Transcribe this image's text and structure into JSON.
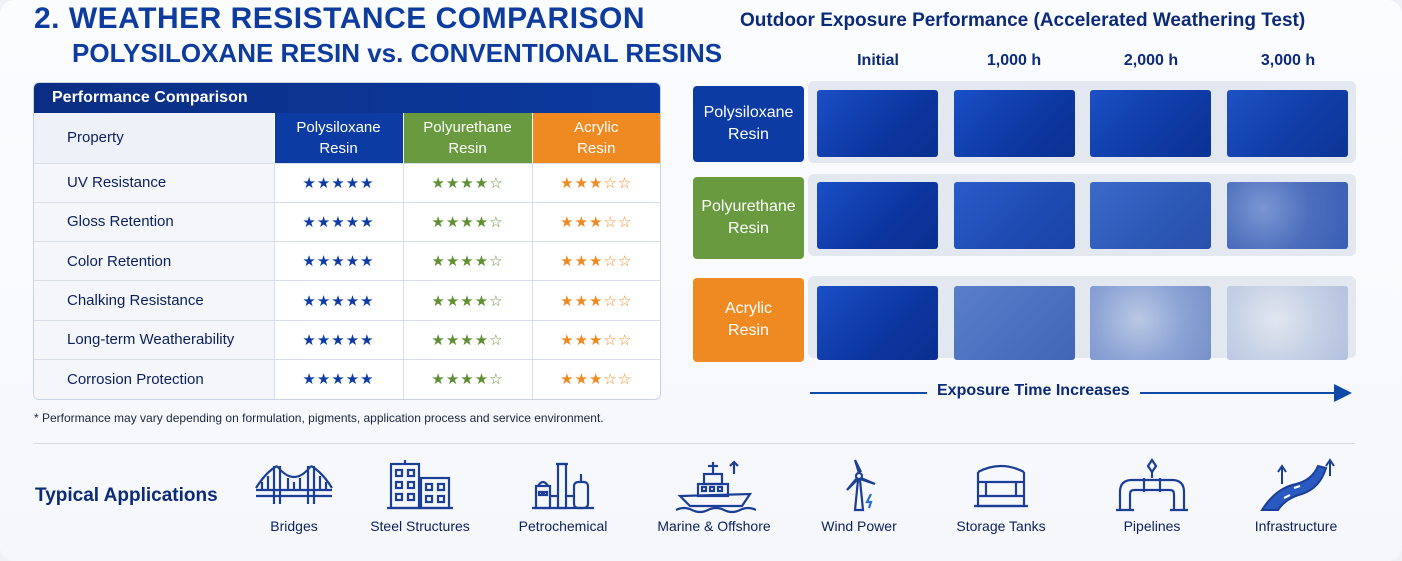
{
  "title": {
    "line1": "2.  WEATHER RESISTANCE COMPARISON",
    "line2": "POLYSILOXANE RESIN vs. CONVENTIONAL RESINS"
  },
  "table": {
    "header": "Performance Comparison",
    "columns": [
      "Property",
      "Polysiloxane\nResin",
      "Polyurethane\nResin",
      "Acrylic\nResin"
    ],
    "col_ps_1": "Polysiloxane",
    "col_ps_2": "Resin",
    "col_pu_1": "Polyurethane",
    "col_pu_2": "Resin",
    "col_ac_1": "Acrylic",
    "col_ac_2": "Resin",
    "col_prop": "Property",
    "rows": [
      {
        "property": "UV Resistance",
        "ps": "★★★★★",
        "pu": "★★★★☆",
        "ac": "★★★☆☆"
      },
      {
        "property": "Gloss Retention",
        "ps": "★★★★★",
        "pu": "★★★★☆",
        "ac": "★★★☆☆"
      },
      {
        "property": "Color Retention",
        "ps": "★★★★★",
        "pu": "★★★★☆",
        "ac": "★★★☆☆"
      },
      {
        "property": "Chalking Resistance",
        "ps": "★★★★★",
        "pu": "★★★★☆",
        "ac": "★★★☆☆"
      },
      {
        "property": "Long-term Weatherability",
        "ps": "★★★★★",
        "pu": "★★★★☆",
        "ac": "★★★☆☆"
      },
      {
        "property": "Corrosion Protection",
        "ps": "★★★★★",
        "pu": "★★★★☆",
        "ac": "★★★☆☆"
      }
    ],
    "ratings": {
      "polysiloxane": 5,
      "polyurethane": 4,
      "acrylic": 3,
      "max": 5
    }
  },
  "footnote": "* Performance may vary depending on formulation, pigments, application process and service environment.",
  "exposure": {
    "title": "Outdoor Exposure Performance (Accelerated Weathering Test)",
    "times": [
      "Initial",
      "1,000 h",
      "2,000 h",
      "3,000 h"
    ],
    "resins": [
      {
        "label1": "Polysiloxane",
        "label2": "Resin",
        "color": "#0c3ca3"
      },
      {
        "label1": "Polyurethane",
        "label2": "Resin",
        "color": "#6a9a3f"
      },
      {
        "label1": "Acrylic",
        "label2": "Resin",
        "color": "#ef8a22"
      }
    ],
    "arrow_label": "Exposure Time Increases"
  },
  "applications": {
    "label": "Typical Applications",
    "items": [
      {
        "name": "Bridges",
        "icon": "bridge-icon"
      },
      {
        "name": "Steel Structures",
        "icon": "building-icon"
      },
      {
        "name": "Petrochemical",
        "icon": "refinery-icon"
      },
      {
        "name": "Marine & Offshore",
        "icon": "ship-icon"
      },
      {
        "name": "Wind Power",
        "icon": "wind-turbine-icon"
      },
      {
        "name": "Storage Tanks",
        "icon": "storage-tank-icon"
      },
      {
        "name": "Pipelines",
        "icon": "pipeline-icon"
      },
      {
        "name": "Infrastructure",
        "icon": "road-icon"
      }
    ]
  },
  "colors": {
    "polysiloxane": "#0c3ca3",
    "polyurethane": "#6a9a3f",
    "acrylic": "#ef8a22",
    "title": "#0d3b9e"
  }
}
